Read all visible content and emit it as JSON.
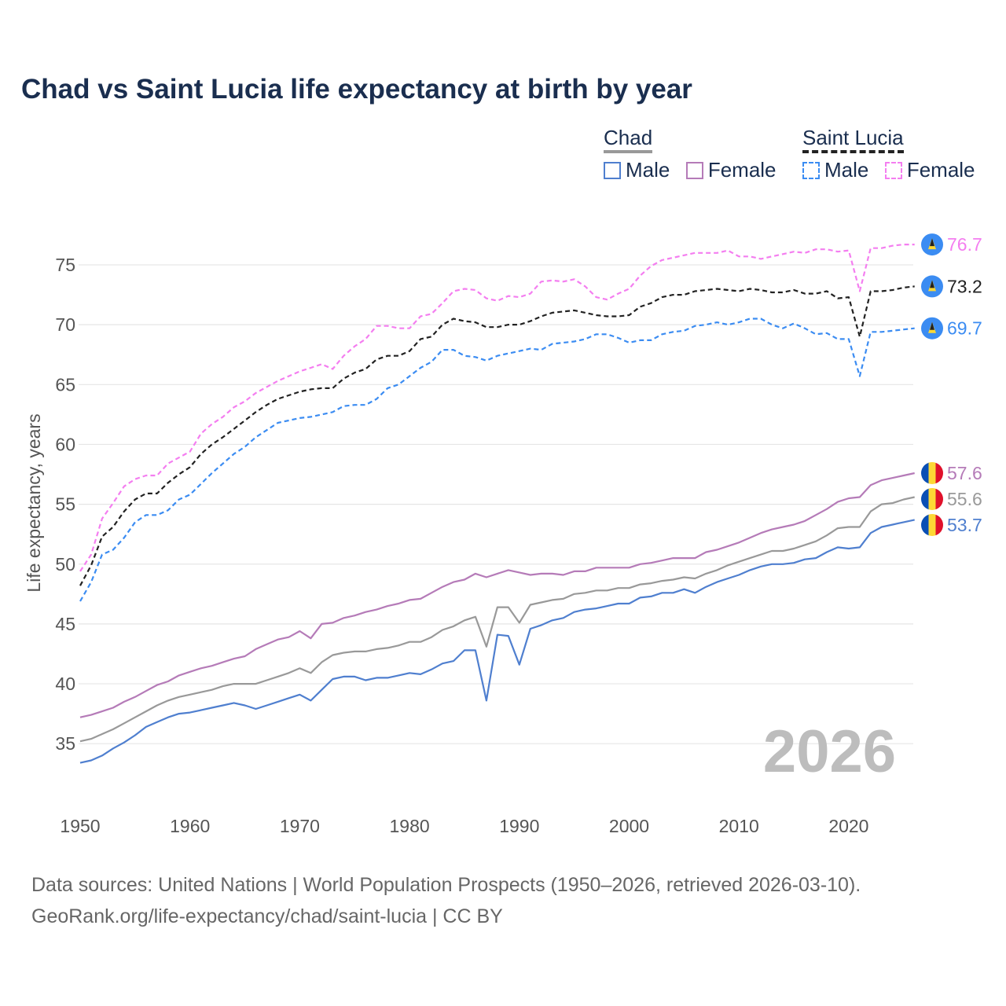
{
  "chart_data": {
    "type": "line",
    "title": "Chad vs Saint Lucia life expectancy at birth by year",
    "xlabel": "",
    "ylabel": "Life expectancy, years",
    "xlim": [
      1950,
      2026
    ],
    "ylim": [
      31,
      78
    ],
    "x_ticks": [
      1950,
      1960,
      1970,
      1980,
      1990,
      2000,
      2010,
      2020
    ],
    "y_ticks": [
      35,
      40,
      45,
      50,
      55,
      60,
      65,
      70,
      75
    ],
    "grid": true,
    "year_watermark": "2026",
    "legend": {
      "groups": [
        {
          "name": "Chad",
          "items": [
            "Male",
            "Female"
          ]
        },
        {
          "name": "Saint Lucia",
          "items": [
            "Male",
            "Female"
          ]
        }
      ],
      "placement": "top-right"
    },
    "x_start": 1950,
    "series": [
      {
        "name": "Saint Lucia Female",
        "country": "Saint Lucia",
        "color": "#f47ef0",
        "dashed": true,
        "end_label": "76.7",
        "values": [
          49.4,
          50.8,
          53.8,
          55.1,
          56.5,
          57.1,
          57.4,
          57.4,
          58.4,
          58.9,
          59.4,
          60.9,
          61.7,
          62.3,
          63.1,
          63.6,
          64.3,
          64.8,
          65.3,
          65.7,
          66.1,
          66.4,
          66.7,
          66.3,
          67.4,
          68.2,
          68.8,
          69.9,
          69.9,
          69.7,
          69.7,
          70.7,
          70.9,
          71.8,
          72.8,
          73.0,
          72.9,
          72.2,
          72.0,
          72.4,
          72.3,
          72.6,
          73.6,
          73.7,
          73.6,
          73.8,
          73.2,
          72.3,
          72.1,
          72.6,
          73.0,
          74.1,
          74.9,
          75.4,
          75.6,
          75.8,
          76.0,
          76.0,
          76.0,
          76.2,
          75.7,
          75.7,
          75.5,
          75.7,
          75.9,
          76.1,
          76.0,
          76.3,
          76.3,
          76.1,
          76.2,
          72.8,
          76.4,
          76.4,
          76.6,
          76.7,
          76.7
        ]
      },
      {
        "name": "Saint Lucia Total",
        "country": "Saint Lucia",
        "color": "#222222",
        "dashed": true,
        "end_label": "73.2",
        "values": [
          48.2,
          49.9,
          52.3,
          53.1,
          54.4,
          55.4,
          55.9,
          55.9,
          56.8,
          57.5,
          58.1,
          59.2,
          60.0,
          60.6,
          61.3,
          62.0,
          62.7,
          63.3,
          63.8,
          64.1,
          64.4,
          64.6,
          64.7,
          64.7,
          65.5,
          66.0,
          66.3,
          67.1,
          67.4,
          67.4,
          67.8,
          68.8,
          69.0,
          70.0,
          70.5,
          70.3,
          70.2,
          69.8,
          69.8,
          70.0,
          70.0,
          70.3,
          70.7,
          71.0,
          71.1,
          71.2,
          71.0,
          70.8,
          70.7,
          70.7,
          70.8,
          71.5,
          71.8,
          72.3,
          72.5,
          72.5,
          72.8,
          72.9,
          73.0,
          72.9,
          72.8,
          73.0,
          72.9,
          72.7,
          72.7,
          72.9,
          72.6,
          72.6,
          72.8,
          72.2,
          72.3,
          69.0,
          72.8,
          72.8,
          72.9,
          73.1,
          73.2
        ]
      },
      {
        "name": "Saint Lucia Male",
        "country": "Saint Lucia",
        "color": "#3b8cf2",
        "dashed": true,
        "end_label": "69.7",
        "values": [
          46.9,
          48.5,
          50.8,
          51.2,
          52.2,
          53.5,
          54.1,
          54.1,
          54.5,
          55.4,
          55.8,
          56.7,
          57.6,
          58.4,
          59.2,
          59.8,
          60.6,
          61.2,
          61.8,
          62.0,
          62.2,
          62.3,
          62.5,
          62.7,
          63.2,
          63.3,
          63.3,
          63.8,
          64.7,
          65.0,
          65.7,
          66.4,
          66.9,
          67.9,
          67.9,
          67.4,
          67.3,
          67.0,
          67.4,
          67.6,
          67.8,
          68.0,
          67.9,
          68.4,
          68.5,
          68.6,
          68.8,
          69.2,
          69.2,
          68.9,
          68.5,
          68.7,
          68.7,
          69.2,
          69.4,
          69.5,
          69.9,
          70.0,
          70.2,
          70.0,
          70.2,
          70.5,
          70.5,
          70.0,
          69.7,
          70.1,
          69.7,
          69.2,
          69.3,
          68.8,
          68.8,
          65.7,
          69.4,
          69.4,
          69.5,
          69.6,
          69.7
        ]
      },
      {
        "name": "Chad Female",
        "country": "Chad",
        "color": "#b57bb8",
        "dashed": false,
        "end_label": "57.6",
        "values": [
          37.2,
          37.4,
          37.7,
          38.0,
          38.5,
          38.9,
          39.4,
          39.9,
          40.2,
          40.7,
          41.0,
          41.3,
          41.5,
          41.8,
          42.1,
          42.3,
          42.9,
          43.3,
          43.7,
          43.9,
          44.4,
          43.8,
          45.0,
          45.1,
          45.5,
          45.7,
          46.0,
          46.2,
          46.5,
          46.7,
          47.0,
          47.1,
          47.6,
          48.1,
          48.5,
          48.7,
          49.2,
          48.9,
          49.2,
          49.5,
          49.3,
          49.1,
          49.2,
          49.2,
          49.1,
          49.4,
          49.4,
          49.7,
          49.7,
          49.7,
          49.7,
          50.0,
          50.1,
          50.3,
          50.5,
          50.5,
          50.5,
          51.0,
          51.2,
          51.5,
          51.8,
          52.2,
          52.6,
          52.9,
          53.1,
          53.3,
          53.6,
          54.1,
          54.6,
          55.2,
          55.5,
          55.6,
          56.6,
          57.0,
          57.2,
          57.4,
          57.6
        ]
      },
      {
        "name": "Chad Total",
        "country": "Chad",
        "color": "#999999",
        "dashed": false,
        "end_label": "55.6",
        "values": [
          35.2,
          35.4,
          35.8,
          36.2,
          36.7,
          37.2,
          37.7,
          38.2,
          38.6,
          38.9,
          39.1,
          39.3,
          39.5,
          39.8,
          40.0,
          40.0,
          40.0,
          40.3,
          40.6,
          40.9,
          41.3,
          40.9,
          41.8,
          42.4,
          42.6,
          42.7,
          42.7,
          42.9,
          43.0,
          43.2,
          43.5,
          43.5,
          43.9,
          44.5,
          44.8,
          45.3,
          45.6,
          43.1,
          46.4,
          46.4,
          45.1,
          46.6,
          46.8,
          47.0,
          47.1,
          47.5,
          47.6,
          47.8,
          47.8,
          48.0,
          48.0,
          48.3,
          48.4,
          48.6,
          48.7,
          48.9,
          48.8,
          49.2,
          49.5,
          49.9,
          50.2,
          50.5,
          50.8,
          51.1,
          51.1,
          51.3,
          51.6,
          51.9,
          52.4,
          53.0,
          53.1,
          53.1,
          54.4,
          55.0,
          55.1,
          55.4,
          55.6
        ]
      },
      {
        "name": "Chad Male",
        "country": "Chad",
        "color": "#4f7fcf",
        "dashed": false,
        "end_label": "53.7",
        "values": [
          33.4,
          33.6,
          34.0,
          34.6,
          35.1,
          35.7,
          36.4,
          36.8,
          37.2,
          37.5,
          37.6,
          37.8,
          38.0,
          38.2,
          38.4,
          38.2,
          37.9,
          38.2,
          38.5,
          38.8,
          39.1,
          38.6,
          39.5,
          40.4,
          40.6,
          40.6,
          40.3,
          40.5,
          40.5,
          40.7,
          40.9,
          40.8,
          41.2,
          41.7,
          41.9,
          42.8,
          42.8,
          38.6,
          44.1,
          44.0,
          41.6,
          44.6,
          44.9,
          45.3,
          45.5,
          46.0,
          46.2,
          46.3,
          46.5,
          46.7,
          46.7,
          47.2,
          47.3,
          47.6,
          47.6,
          47.9,
          47.6,
          48.1,
          48.5,
          48.8,
          49.1,
          49.5,
          49.8,
          50.0,
          50.0,
          50.1,
          50.4,
          50.5,
          51.0,
          51.4,
          51.3,
          51.4,
          52.6,
          53.1,
          53.3,
          53.5,
          53.7
        ]
      }
    ]
  },
  "footer": {
    "line1": "Data sources: United Nations | World Population Prospects (1950–2026, retrieved 2026-03-10).",
    "line2": "GeoRank.org/life-expectancy/chad/saint-lucia | CC BY"
  }
}
